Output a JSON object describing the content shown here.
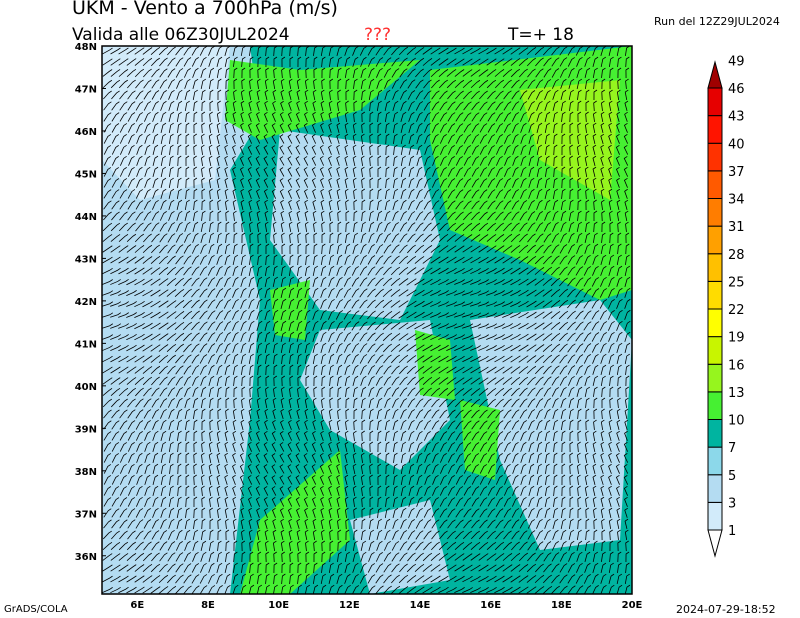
{
  "header": {
    "title": "UKM - Vento a 700hPa (m/s)",
    "valid": "Valida alle 06Z30JUL2024",
    "marker": "???",
    "forecast_step": "T=+ 18",
    "run": "Run del 12Z29JUL2024"
  },
  "footer": {
    "software": "GrADS/COLA",
    "timestamp": "2024-07-29-18:52"
  },
  "map": {
    "lat_labels": [
      "48N",
      "47N",
      "46N",
      "45N",
      "44N",
      "43N",
      "42N",
      "41N",
      "40N",
      "39N",
      "38N",
      "37N",
      "36N"
    ],
    "lon_labels": [
      "6E",
      "8E",
      "10E",
      "12E",
      "14E",
      "16E",
      "18E",
      "20E"
    ],
    "lat_range": [
      35.1,
      48
    ],
    "lon_range": [
      5,
      20
    ],
    "field": "wind speed 700hPa",
    "overlay": "wind barbs"
  },
  "colorbar": {
    "labels": [
      "1",
      "3",
      "5",
      "7",
      "10",
      "13",
      "16",
      "19",
      "22",
      "25",
      "28",
      "31",
      "34",
      "37",
      "40",
      "43",
      "46",
      "49"
    ],
    "colors": [
      "#ffffff",
      "#d2ebfa",
      "#b4dcf2",
      "#8cd8ea",
      "#00b4a0",
      "#46f032",
      "#96f51e",
      "#c8f500",
      "#ffff00",
      "#ffdc00",
      "#ffc000",
      "#ffa000",
      "#ff7d00",
      "#ff5a00",
      "#ff3200",
      "#ff1400",
      "#e60000",
      "#c80000",
      "#a00000"
    ]
  }
}
